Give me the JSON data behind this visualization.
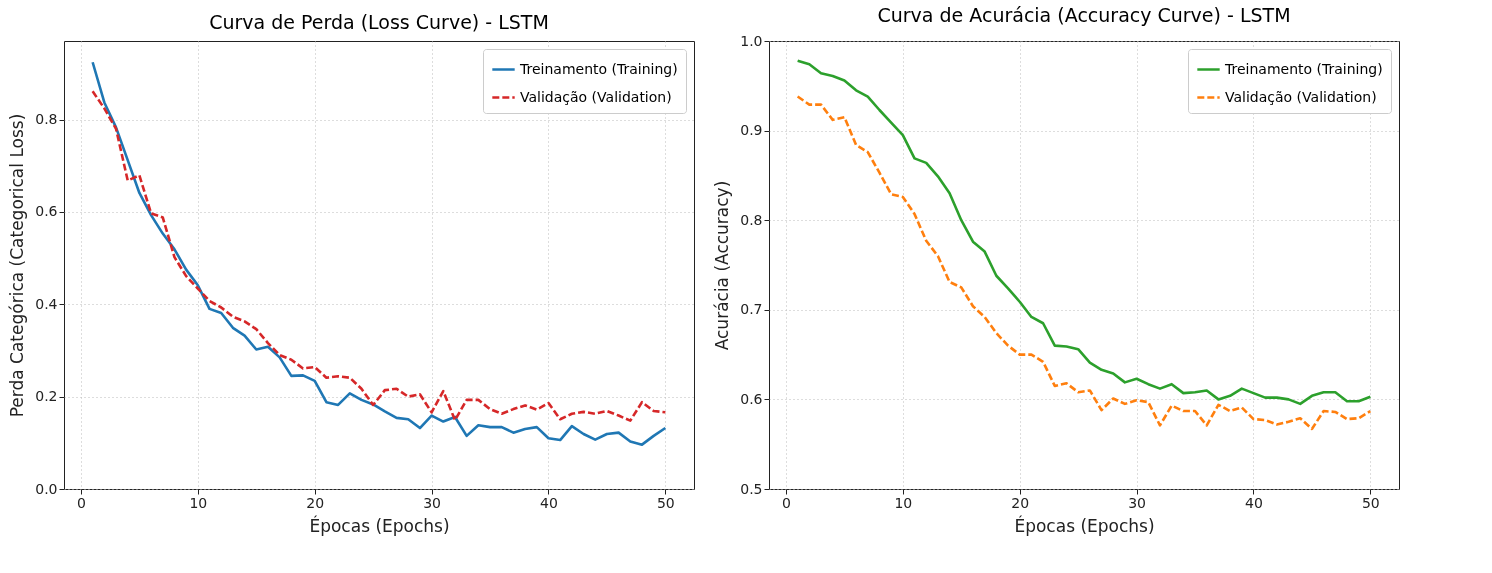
{
  "chart_data": [
    {
      "type": "line",
      "title": "Curva de Perda (Loss Curve) - LSTM",
      "xlabel": "Épocas (Epochs)",
      "ylabel": "Perda Categórica (Categorical Loss)",
      "x": [
        1,
        2,
        3,
        4,
        5,
        6,
        7,
        8,
        9,
        10,
        11,
        12,
        13,
        14,
        15,
        16,
        17,
        18,
        19,
        20,
        21,
        22,
        23,
        24,
        25,
        26,
        27,
        28,
        29,
        30,
        31,
        32,
        33,
        34,
        35,
        36,
        37,
        38,
        39,
        40,
        41,
        42,
        43,
        44,
        45,
        46,
        47,
        48,
        49,
        50
      ],
      "series": [
        {
          "name": "Treinamento (Training)",
          "color": "#1f77b4",
          "line_style": "solid",
          "values": [
            0.924,
            0.837,
            0.783,
            0.712,
            0.641,
            0.593,
            0.553,
            0.519,
            0.475,
            0.441,
            0.39,
            0.381,
            0.349,
            0.332,
            0.302,
            0.308,
            0.285,
            0.245,
            0.246,
            0.234,
            0.188,
            0.182,
            0.207,
            0.193,
            0.183,
            0.168,
            0.154,
            0.151,
            0.132,
            0.159,
            0.146,
            0.156,
            0.115,
            0.138,
            0.134,
            0.134,
            0.122,
            0.13,
            0.134,
            0.11,
            0.106,
            0.136,
            0.119,
            0.107,
            0.119,
            0.122,
            0.103,
            0.096,
            0.115,
            0.132
          ]
        },
        {
          "name": "Validação (Validation)",
          "color": "#d62728",
          "line_style": "dashed",
          "values": [
            0.861,
            0.824,
            0.78,
            0.668,
            0.679,
            0.597,
            0.588,
            0.502,
            0.461,
            0.434,
            0.407,
            0.393,
            0.373,
            0.363,
            0.346,
            0.316,
            0.29,
            0.28,
            0.261,
            0.264,
            0.241,
            0.244,
            0.241,
            0.217,
            0.182,
            0.214,
            0.217,
            0.2,
            0.205,
            0.166,
            0.212,
            0.149,
            0.193,
            0.193,
            0.173,
            0.163,
            0.173,
            0.181,
            0.172,
            0.186,
            0.151,
            0.163,
            0.167,
            0.163,
            0.169,
            0.159,
            0.148,
            0.188,
            0.169,
            0.166
          ]
        }
      ],
      "xlim": [
        -1.45,
        52.45
      ],
      "xticks": [
        0,
        10,
        20,
        30,
        40,
        50
      ],
      "ylim": [
        0,
        0.97
      ],
      "yticks": [
        {
          "value": 0,
          "label": "0.0"
        },
        0.2,
        0.4,
        0.6,
        0.8
      ],
      "grid": true,
      "legend": "top right"
    },
    {
      "type": "line",
      "title": "Curva de Acurácia (Accuracy Curve) - LSTM",
      "xlabel": "Épocas (Epochs)",
      "ylabel": "Acurácia (Accuracy)",
      "x": [
        1,
        2,
        3,
        4,
        5,
        6,
        7,
        8,
        9,
        10,
        11,
        12,
        13,
        14,
        15,
        16,
        17,
        18,
        19,
        20,
        21,
        22,
        23,
        24,
        25,
        26,
        27,
        28,
        29,
        30,
        31,
        32,
        33,
        34,
        35,
        36,
        37,
        38,
        39,
        40,
        41,
        42,
        43,
        44,
        45,
        46,
        47,
        48,
        49,
        50
      ],
      "series": [
        {
          "name": "Treinamento (Training)",
          "color": "#2ca02c",
          "line_style": "solid",
          "values": [
            0.978,
            0.974,
            0.964,
            0.961,
            0.956,
            0.945,
            0.938,
            0.923,
            0.909,
            0.895,
            0.869,
            0.864,
            0.849,
            0.83,
            0.8,
            0.776,
            0.765,
            0.738,
            0.724,
            0.709,
            0.692,
            0.685,
            0.66,
            0.659,
            0.656,
            0.641,
            0.633,
            0.629,
            0.619,
            0.623,
            0.617,
            0.612,
            0.617,
            0.607,
            0.608,
            0.61,
            0.6,
            0.604,
            0.612,
            0.607,
            0.602,
            0.602,
            0.6,
            0.595,
            0.604,
            0.608,
            0.608,
            0.598,
            0.598,
            0.603
          ]
        },
        {
          "name": "Validação (Validation)",
          "color": "#ff7f0e",
          "line_style": "dashed",
          "values": [
            0.938,
            0.929,
            0.929,
            0.912,
            0.915,
            0.884,
            0.876,
            0.853,
            0.829,
            0.826,
            0.807,
            0.777,
            0.76,
            0.731,
            0.725,
            0.704,
            0.692,
            0.674,
            0.66,
            0.65,
            0.65,
            0.642,
            0.615,
            0.618,
            0.608,
            0.61,
            0.588,
            0.601,
            0.595,
            0.599,
            0.597,
            0.571,
            0.593,
            0.587,
            0.587,
            0.571,
            0.594,
            0.587,
            0.591,
            0.578,
            0.577,
            0.572,
            0.575,
            0.579,
            0.567,
            0.587,
            0.586,
            0.578,
            0.579,
            0.587
          ]
        }
      ],
      "xlim": [
        -1.45,
        52.45
      ],
      "xticks": [
        0,
        10,
        20,
        30,
        40,
        50
      ],
      "ylim": [
        0.5,
        1.0
      ],
      "yticks": [
        0.5,
        0.6,
        0.7,
        0.8,
        0.9,
        {
          "value": 1.0,
          "label": "1.0"
        }
      ],
      "grid": true,
      "legend": "top right"
    }
  ]
}
